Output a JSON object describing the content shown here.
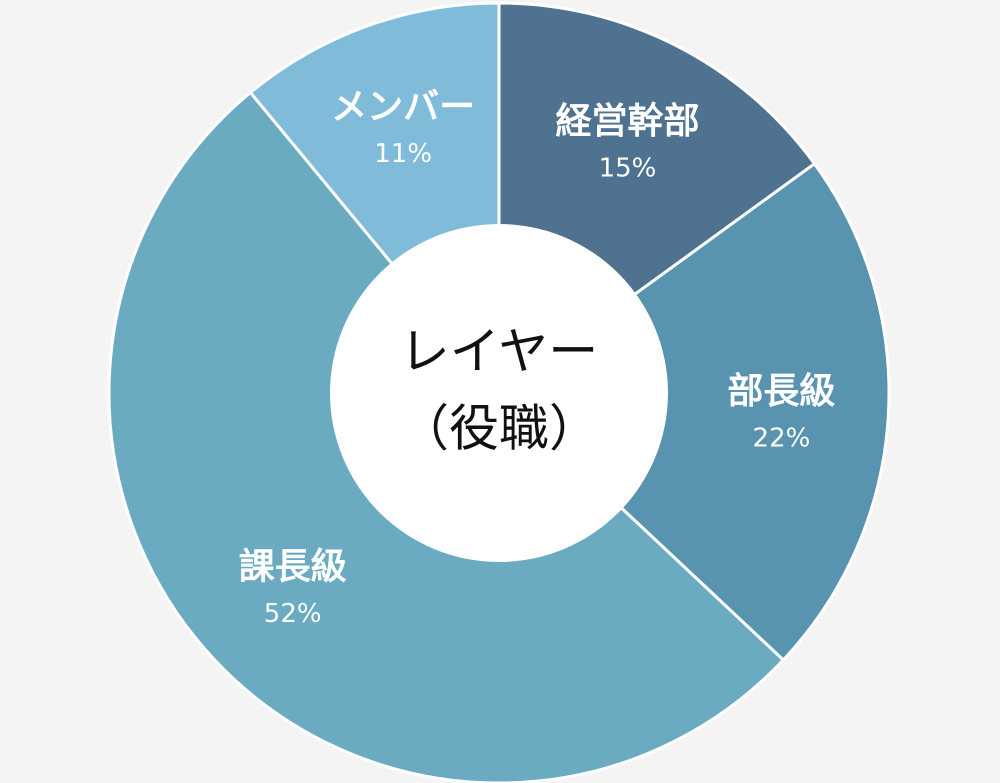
{
  "chart_data": {
    "type": "donut",
    "title": "レイヤー",
    "subtitle": "（役職）",
    "categories": [
      "経営幹部",
      "部長級",
      "課長級",
      "メンバー"
    ],
    "values": [
      15,
      22,
      52,
      11
    ],
    "value_labels": [
      "15%",
      "22%",
      "52%",
      "11%"
    ],
    "colors": [
      "#4e7290",
      "#5893b0",
      "#6aabc2",
      "#80bcd9"
    ]
  }
}
